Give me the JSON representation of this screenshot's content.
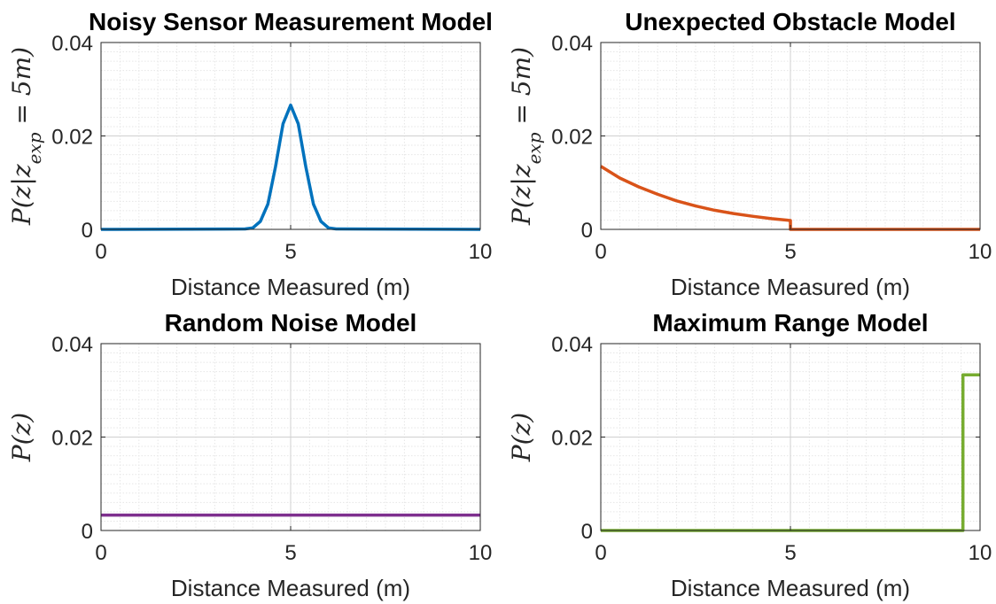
{
  "chart_data": [
    {
      "type": "line",
      "title": "Noisy Sensor Measurement Model",
      "xlabel": "Distance Measured (m)",
      "ylabel": "P(z|z_exp = 5m)",
      "xlim": [
        0,
        10
      ],
      "ylim": [
        0,
        0.04
      ],
      "xticks": [
        "0",
        "5",
        "10"
      ],
      "yticks": [
        "0",
        "0.02",
        "0.04"
      ],
      "grid": "on (major and minor)",
      "series": [
        {
          "color": "#0072BD",
          "x": [
            0,
            3.8,
            4.0,
            4.2,
            4.4,
            4.6,
            4.8,
            5.0,
            5.2,
            5.4,
            5.6,
            5.8,
            6.0,
            6.2,
            10
          ],
          "y": [
            0,
            0.0001,
            0.0003,
            0.0017,
            0.0054,
            0.0134,
            0.0226,
            0.0266,
            0.0226,
            0.0134,
            0.0054,
            0.0017,
            0.0003,
            0.0001,
            0
          ]
        }
      ]
    },
    {
      "type": "line",
      "title": "Unexpected Obstacle Model",
      "xlabel": "Distance Measured (m)",
      "ylabel": "P(z|z_exp = 5m)",
      "xlim": [
        0,
        10
      ],
      "ylim": [
        0,
        0.04
      ],
      "xticks": [
        "0",
        "5",
        "10"
      ],
      "yticks": [
        "0",
        "0.02",
        "0.04"
      ],
      "grid": "on (major and minor)",
      "series": [
        {
          "color": "#D95319",
          "x": [
            0,
            0.5,
            1.0,
            1.5,
            2.0,
            2.5,
            3.0,
            3.5,
            4.0,
            4.5,
            5.0,
            5.0,
            10
          ],
          "y": [
            0.0135,
            0.011,
            0.0091,
            0.0075,
            0.0061,
            0.005,
            0.0041,
            0.0034,
            0.0028,
            0.0023,
            0.0019,
            0,
            0
          ]
        }
      ]
    },
    {
      "type": "line",
      "title": "Random Noise Model",
      "xlabel": "Distance Measured (m)",
      "ylabel": "P(z)",
      "xlim": [
        0,
        10
      ],
      "ylim": [
        0,
        0.04
      ],
      "xticks": [
        "0",
        "5",
        "10"
      ],
      "yticks": [
        "0",
        "0.02",
        "0.04"
      ],
      "grid": "on (major and minor)",
      "series": [
        {
          "color": "#7E2F8E",
          "x": [
            0,
            10
          ],
          "y": [
            0.0033,
            0.0033
          ]
        }
      ]
    },
    {
      "type": "line",
      "title": "Maximum Range Model",
      "xlabel": "Distance Measured (m)",
      "ylabel": "P(z)",
      "xlim": [
        0,
        10
      ],
      "ylim": [
        0,
        0.04
      ],
      "xticks": [
        "0",
        "5",
        "10"
      ],
      "yticks": [
        "0",
        "0.02",
        "0.04"
      ],
      "grid": "on (major and minor)",
      "series": [
        {
          "color": "#77AC30",
          "x": [
            0,
            9.55,
            9.55,
            10
          ],
          "y": [
            0,
            0,
            0.0333,
            0.0333
          ]
        }
      ]
    }
  ]
}
